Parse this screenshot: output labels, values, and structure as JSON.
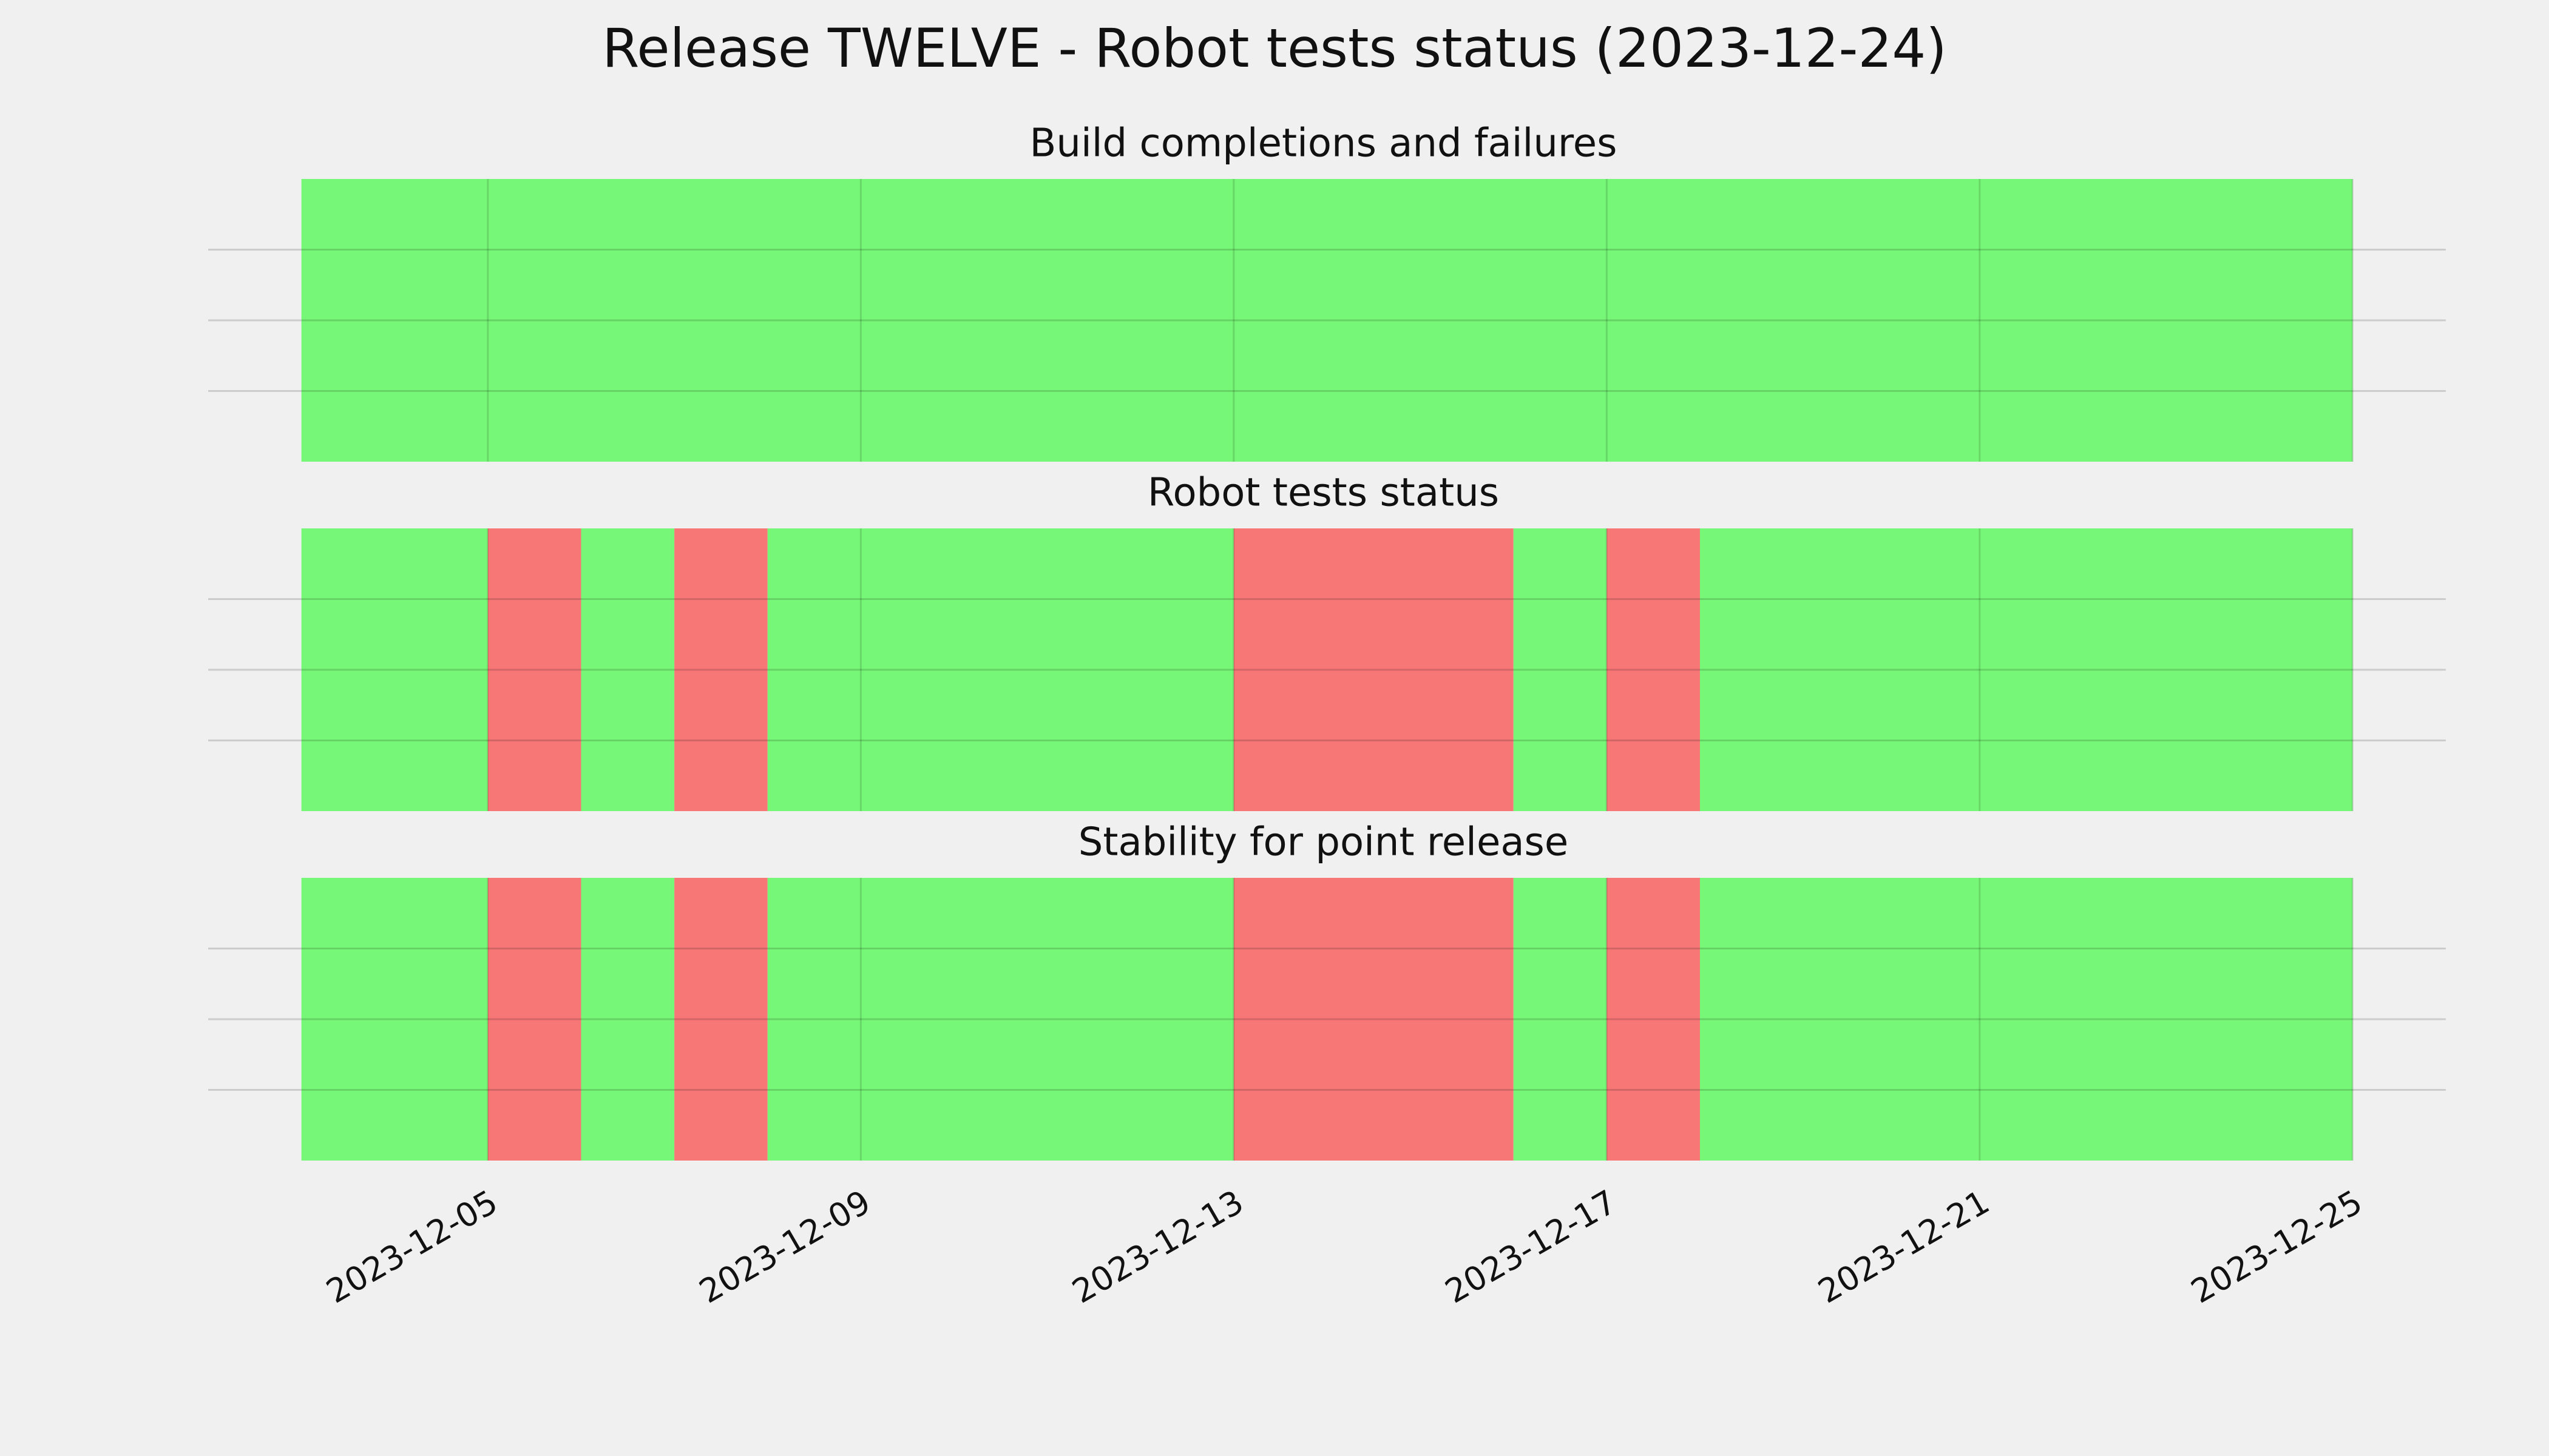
{
  "title": "Release TWELVE - Robot tests status (2023-12-24)",
  "chart_data": [
    {
      "type": "timeline",
      "title": "Build completions and failures",
      "spans": [
        {
          "start": "2023-12-03",
          "end": "2023-12-25",
          "color": "#77f777"
        }
      ],
      "xlim": [
        "2023-12-02",
        "2023-12-26"
      ],
      "xticks": [
        "2023-12-05",
        "2023-12-09",
        "2023-12-13",
        "2023-12-17",
        "2023-12-21",
        "2023-12-25"
      ],
      "grid": true
    },
    {
      "type": "timeline",
      "title": "Robot tests status",
      "spans": [
        {
          "start": "2023-12-03",
          "end": "2023-12-05",
          "color": "#77f777"
        },
        {
          "start": "2023-12-05",
          "end": "2023-12-06",
          "color": "#f77777"
        },
        {
          "start": "2023-12-06",
          "end": "2023-12-07",
          "color": "#77f777"
        },
        {
          "start": "2023-12-07",
          "end": "2023-12-08",
          "color": "#f77777"
        },
        {
          "start": "2023-12-08",
          "end": "2023-12-13",
          "color": "#77f777"
        },
        {
          "start": "2023-12-13",
          "end": "2023-12-16",
          "color": "#f77777"
        },
        {
          "start": "2023-12-16",
          "end": "2023-12-17",
          "color": "#77f777"
        },
        {
          "start": "2023-12-17",
          "end": "2023-12-18",
          "color": "#f77777"
        },
        {
          "start": "2023-12-18",
          "end": "2023-12-25",
          "color": "#77f777"
        }
      ],
      "xlim": [
        "2023-12-02",
        "2023-12-26"
      ],
      "xticks": [
        "2023-12-05",
        "2023-12-09",
        "2023-12-13",
        "2023-12-17",
        "2023-12-21",
        "2023-12-25"
      ],
      "grid": true
    },
    {
      "type": "timeline",
      "title": "Stability for point release",
      "spans": [
        {
          "start": "2023-12-03",
          "end": "2023-12-05",
          "color": "#77f777"
        },
        {
          "start": "2023-12-05",
          "end": "2023-12-06",
          "color": "#f77777"
        },
        {
          "start": "2023-12-06",
          "end": "2023-12-07",
          "color": "#77f777"
        },
        {
          "start": "2023-12-07",
          "end": "2023-12-08",
          "color": "#f77777"
        },
        {
          "start": "2023-12-08",
          "end": "2023-12-13",
          "color": "#77f777"
        },
        {
          "start": "2023-12-13",
          "end": "2023-12-16",
          "color": "#f77777"
        },
        {
          "start": "2023-12-16",
          "end": "2023-12-17",
          "color": "#77f777"
        },
        {
          "start": "2023-12-17",
          "end": "2023-12-18",
          "color": "#f77777"
        },
        {
          "start": "2023-12-18",
          "end": "2023-12-25",
          "color": "#77f777"
        }
      ],
      "xlim": [
        "2023-12-02",
        "2023-12-26"
      ],
      "xticks": [
        "2023-12-05",
        "2023-12-09",
        "2023-12-13",
        "2023-12-17",
        "2023-12-21",
        "2023-12-25"
      ],
      "grid": true
    }
  ]
}
